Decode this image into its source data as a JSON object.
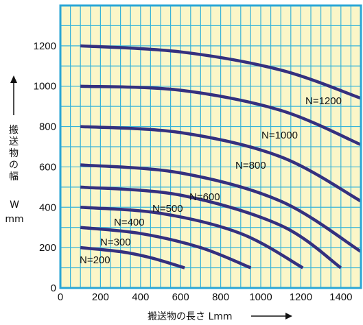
{
  "chart_data": {
    "type": "line",
    "xlabel": "搬送物の長さ Lmm",
    "ylabel_chars": [
      "搬",
      "送",
      "物",
      "の",
      "幅"
    ],
    "ylabel_symbol": "W",
    "ylabel_unit": "mm",
    "xlim": [
      0,
      1500
    ],
    "ylim": [
      0,
      1400
    ],
    "x_ticks": [
      0,
      200,
      400,
      600,
      800,
      1000,
      1200,
      1400
    ],
    "y_ticks": [
      0,
      200,
      400,
      600,
      800,
      1000,
      1200
    ],
    "grid": true,
    "colors": {
      "plot_background": "#FBF6C8",
      "grid": "#37B4DA",
      "frame": "#2AA6D6",
      "curve": "#35307F"
    },
    "series": [
      {
        "name": "N=200",
        "x": [
          100,
          300,
          450,
          620
        ],
        "y": [
          200,
          180,
          150,
          100
        ]
      },
      {
        "name": "N=300",
        "x": [
          100,
          400,
          700,
          950
        ],
        "y": [
          300,
          270,
          200,
          100
        ]
      },
      {
        "name": "N=400",
        "x": [
          100,
          500,
          900,
          1210
        ],
        "y": [
          400,
          370,
          270,
          100
        ]
      },
      {
        "name": "N=500",
        "x": [
          100,
          600,
          1100,
          1400
        ],
        "y": [
          500,
          460,
          310,
          100
        ]
      },
      {
        "name": "N=600",
        "x": [
          100,
          600,
          1100,
          1500
        ],
        "y": [
          610,
          570,
          430,
          180
        ]
      },
      {
        "name": "N=800",
        "x": [
          100,
          600,
          1100,
          1500
        ],
        "y": [
          800,
          770,
          650,
          430
        ]
      },
      {
        "name": "N=1000",
        "x": [
          100,
          600,
          1100,
          1500
        ],
        "y": [
          1000,
          980,
          880,
          710
        ]
      },
      {
        "name": "N=1200",
        "x": [
          100,
          600,
          1100,
          1500
        ],
        "y": [
          1200,
          1170,
          1080,
          940
        ]
      }
    ]
  }
}
